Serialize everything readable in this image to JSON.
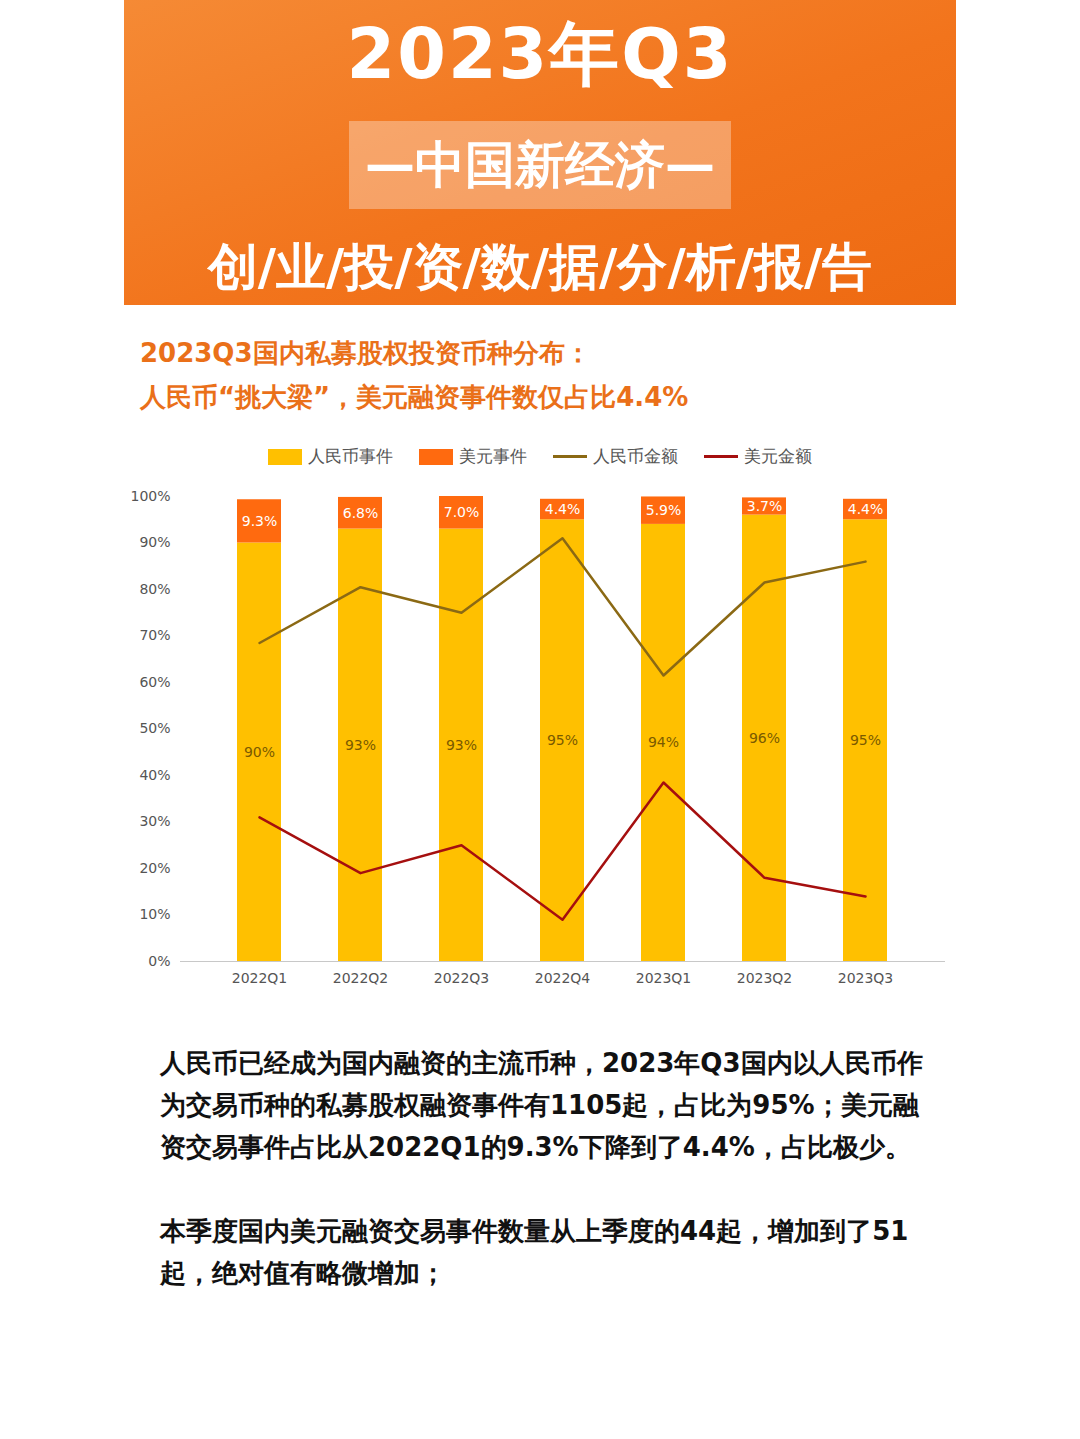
{
  "header": {
    "title": "2023年Q3",
    "subtitle": "—中国新经济—",
    "tagline": "创/业/投/资/数/据/分/析/报/告"
  },
  "chart_data": {
    "type": "bar",
    "title": "2023Q3国内私募股权投资币种分布：",
    "subtitle": "人民币“挑大梁”，美元融资事件数仅占比4.4%",
    "categories": [
      "2022Q1",
      "2022Q2",
      "2022Q3",
      "2022Q4",
      "2023Q1",
      "2023Q2",
      "2023Q3"
    ],
    "stacked": true,
    "legend": "top",
    "grid": false,
    "ylim": [
      0,
      100
    ],
    "yticks": [
      {
        "value": 0,
        "label": "0%"
      },
      {
        "value": 10,
        "label": "10%"
      },
      {
        "value": 20,
        "label": "20%"
      },
      {
        "value": 30,
        "label": "30%"
      },
      {
        "value": 40,
        "label": "40%"
      },
      {
        "value": 50,
        "label": "50%"
      },
      {
        "value": 60,
        "label": "60%"
      },
      {
        "value": 70,
        "label": "70%"
      },
      {
        "value": 80,
        "label": "80%"
      },
      {
        "value": 90,
        "label": "90%"
      },
      {
        "value": 100,
        "label": "100%"
      }
    ],
    "series": [
      {
        "name": "人民币事件",
        "type": "bar",
        "color": "#FFC000",
        "values": [
          90,
          93,
          93,
          95,
          94,
          96,
          95
        ],
        "data_labels": true,
        "value_labels": [
          "90%",
          "93%",
          "93%",
          "95%",
          "94%",
          "96%",
          "95%"
        ]
      },
      {
        "name": "美元事件",
        "type": "bar",
        "color": "#FF6A0F",
        "values": [
          9.3,
          6.8,
          7.0,
          4.4,
          5.9,
          3.7,
          4.4
        ],
        "data_labels": true,
        "value_labels": [
          "9.3%",
          "6.8%",
          "7.0%",
          "4.4%",
          "5.9%",
          "3.7%",
          "4.4%"
        ]
      },
      {
        "name": "人民币金额",
        "type": "line",
        "color": "#8B6914",
        "values": [
          68.5,
          80.5,
          75,
          91,
          61.5,
          81.5,
          86
        ]
      },
      {
        "name": "美元金额",
        "type": "line",
        "color": "#A50F0F",
        "values": [
          31,
          19,
          25,
          9,
          38.5,
          18,
          14
        ]
      }
    ]
  },
  "paragraphs": [
    "人民币已经成为国内融资的主流币种，2023年Q3国内以人民币作为交易币种的私募股权融资事件有1105起，占比为95%；美元融资交易事件占比从2022Q1的9.3%下降到了4.4%，占比极少。",
    "本季度国内美元融资交易事件数量从上季度的44起，增加到了51起，绝对值有略微增加；"
  ]
}
